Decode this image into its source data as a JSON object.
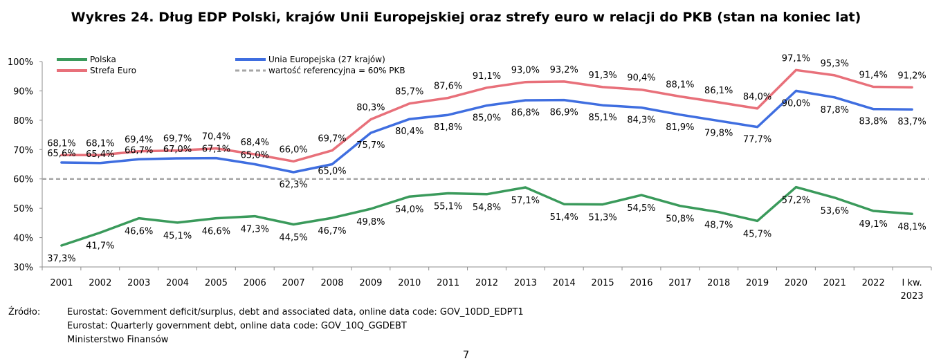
{
  "title": "Wykres 24. Dług EDP Polski, krajów Unii Europejskiej oraz strefy euro w relacji do PKB (stan na koniec lat)",
  "chart_data": {
    "type": "line",
    "x": [
      "2001",
      "2002",
      "2003",
      "2004",
      "2005",
      "2006",
      "2007",
      "2008",
      "2009",
      "2010",
      "2011",
      "2012",
      "2013",
      "2014",
      "2015",
      "2016",
      "2017",
      "2018",
      "2019",
      "2020",
      "2021",
      "2022",
      "I kw.\n2023"
    ],
    "ylim": [
      30,
      100
    ],
    "yticks": [
      30,
      40,
      50,
      60,
      70,
      80,
      90,
      100
    ],
    "ytick_labels": [
      "30%",
      "40%",
      "50%",
      "60%",
      "70%",
      "80%",
      "90%",
      "100%"
    ],
    "grid": false,
    "legend_position": "top-left",
    "series": [
      {
        "name": "Polska",
        "color": "#3a9a5b",
        "values": [
          37.3,
          41.7,
          46.6,
          45.1,
          46.6,
          47.3,
          44.5,
          46.7,
          49.8,
          54.0,
          55.1,
          54.8,
          57.1,
          51.4,
          51.3,
          54.5,
          50.8,
          48.7,
          45.7,
          57.2,
          53.6,
          49.1,
          48.1
        ],
        "labels": [
          "37,3%",
          "41,7%",
          "46,6%",
          "45,1%",
          "46,6%",
          "47,3%",
          "44,5%",
          "46,7%",
          "49,8%",
          "54,0%",
          "55,1%",
          "54,8%",
          "57,1%",
          "51,4%",
          "51,3%",
          "54,5%",
          "50,8%",
          "48,7%",
          "45,7%",
          "57,2%",
          "53,6%",
          "49,1%",
          "48,1%"
        ]
      },
      {
        "name": "Unia Europejska (27 krajów)",
        "color": "#3f6ee0",
        "values": [
          65.6,
          65.4,
          66.7,
          67.0,
          67.1,
          65.0,
          62.3,
          65.0,
          75.7,
          80.4,
          81.8,
          85.0,
          86.8,
          86.9,
          85.1,
          84.3,
          81.9,
          79.8,
          77.7,
          90.0,
          87.8,
          83.8,
          83.7
        ],
        "labels": [
          "65,6%",
          "65,4%",
          "66,7%",
          "67,0%",
          "67,1%",
          "65,0%",
          "62,3%",
          "65,0%",
          "75,7%",
          "80,4%",
          "81,8%",
          "85,0%",
          "86,8%",
          "86,9%",
          "85,1%",
          "84,3%",
          "81,9%",
          "79,8%",
          "77,7%",
          "90,0%",
          "87,8%",
          "83,8%",
          "83,7%"
        ]
      },
      {
        "name": "Strefa Euro",
        "color": "#e8707a",
        "values": [
          68.1,
          68.1,
          69.4,
          69.7,
          70.4,
          68.4,
          66.0,
          69.7,
          80.3,
          85.7,
          87.6,
          91.1,
          93.0,
          93.2,
          91.3,
          90.4,
          88.1,
          86.1,
          84.0,
          97.1,
          95.3,
          91.4,
          91.2
        ],
        "labels": [
          "68,1%",
          "68,1%",
          "69,4%",
          "69,7%",
          "70,4%",
          "68,4%",
          "66,0%",
          "69,7%",
          "80,3%",
          "85,7%",
          "87,6%",
          "91,1%",
          "93,0%",
          "93,2%",
          "91,3%",
          "90,4%",
          "88,1%",
          "86,1%",
          "84,0%",
          "97,1%",
          "95,3%",
          "91,4%",
          "91,2%"
        ]
      }
    ],
    "reference_line": {
      "name": "wartość referencyjna = 60% PKB",
      "value": 60,
      "color": "#a6a6a6"
    }
  },
  "source": {
    "label": "Źródło:",
    "lines": [
      "Eurostat: Government deficit/surplus, debt and associated data, online data code: GOV_10DD_EDPT1",
      "Eurostat: Quarterly government debt, online data code: GOV_10Q_GGDEBT",
      "Ministerstwo Finansów"
    ]
  },
  "page_number": "7"
}
